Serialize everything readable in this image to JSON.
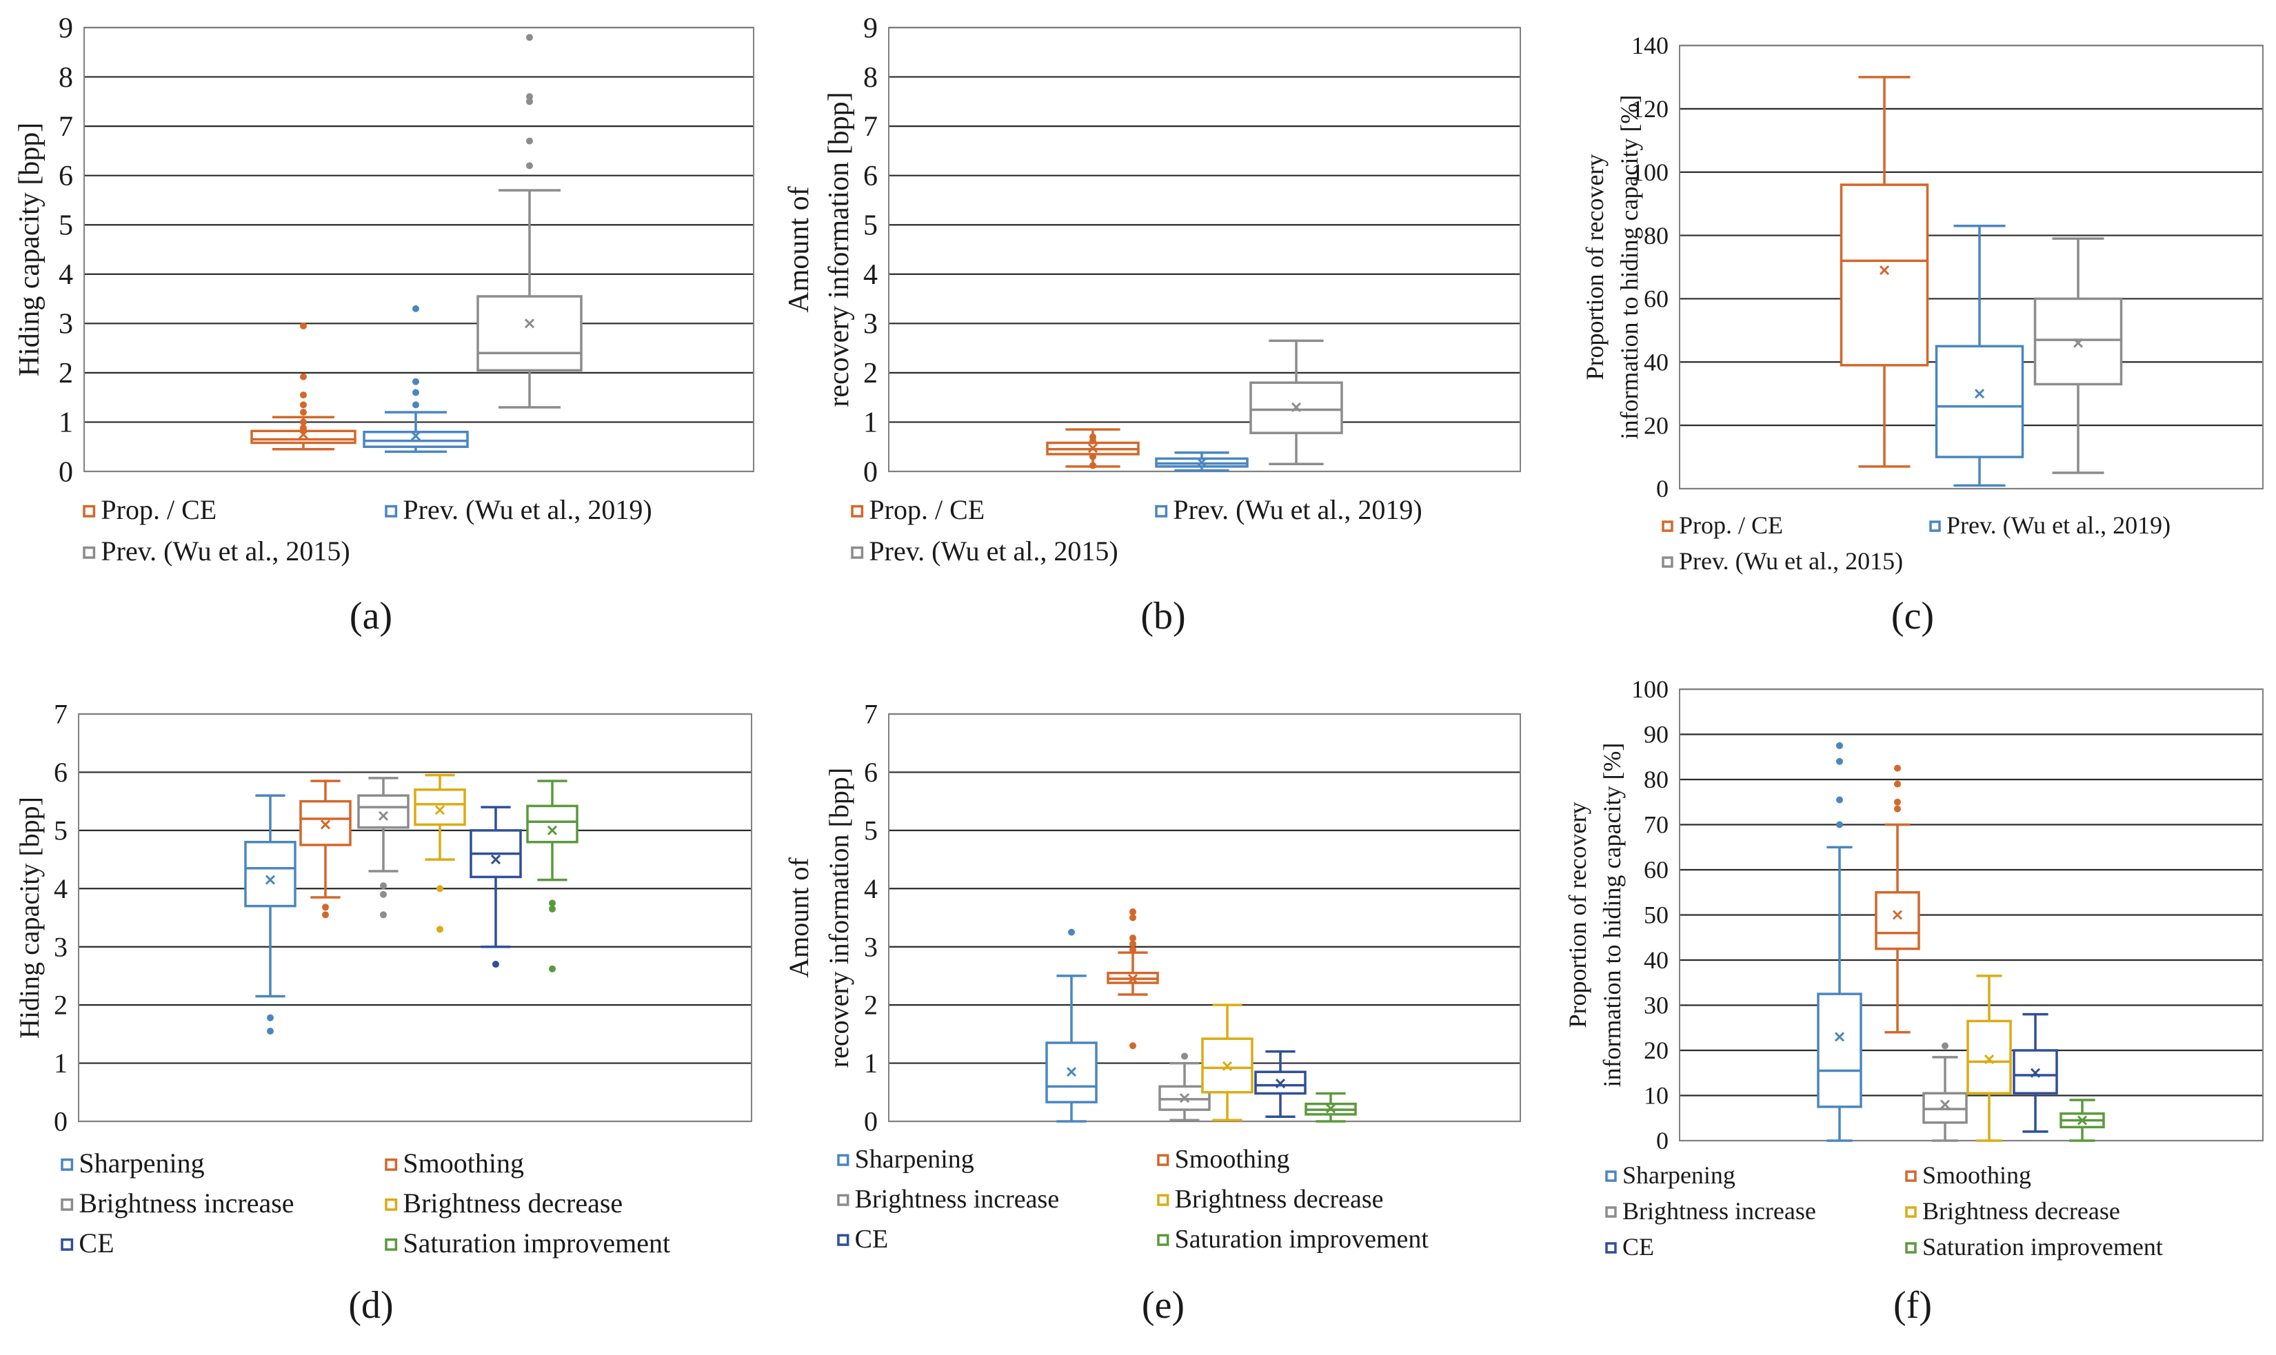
{
  "colors": {
    "sharpening": "#4a86c0",
    "smoothing": "#d4672a",
    "brightness_increase": "#8c8c8c",
    "brightness_decrease": "#dcab13",
    "ce": "#2f4f99",
    "saturation": "#5a9a3c",
    "gridline": "#1a1a1a",
    "frame": "#808080"
  },
  "chart_data": [
    {
      "id": "a",
      "panel_label": "(a)",
      "type": "box",
      "ylabel": [
        "Hiding capacity [bpp]"
      ],
      "ylim": [
        0,
        9
      ],
      "yticks": [
        0,
        1,
        2,
        3,
        4,
        5,
        6,
        7,
        8,
        9
      ],
      "legend": [
        {
          "name": "Prop. / CE",
          "color": "#d4672a"
        },
        {
          "name": "Prev. (Wu et al., 2019)",
          "color": "#4a86c0"
        },
        {
          "name": "Prev. (Wu et al., 2015)",
          "color": "#8c8c8c"
        }
      ],
      "series": [
        {
          "name": "Prop. / CE",
          "color": "#d4672a",
          "min": 0.45,
          "q1": 0.58,
          "median": 0.65,
          "q3": 0.82,
          "max": 1.1,
          "mean": 0.75,
          "outliers": [
            1.2,
            1.35,
            1.55,
            1.92,
            2.95,
            0.82,
            0.88,
            1.0
          ]
        },
        {
          "name": "Prev. (Wu et al., 2019)",
          "color": "#4a86c0",
          "min": 0.4,
          "q1": 0.5,
          "median": 0.62,
          "q3": 0.8,
          "max": 1.2,
          "mean": 0.72,
          "outliers": [
            1.35,
            1.6,
            1.82,
            3.3
          ]
        },
        {
          "name": "Prev. (Wu et al., 2015)",
          "color": "#8c8c8c",
          "min": 1.3,
          "q1": 2.05,
          "median": 2.4,
          "q3": 3.55,
          "max": 5.7,
          "mean": 3.0,
          "outliers": [
            6.2,
            6.7,
            7.5,
            7.6,
            8.8
          ]
        }
      ]
    },
    {
      "id": "b",
      "panel_label": "(b)",
      "type": "box",
      "ylabel": [
        "Amount of",
        "recovery information [bpp]"
      ],
      "ylim": [
        0,
        9
      ],
      "yticks": [
        0,
        1,
        2,
        3,
        4,
        5,
        6,
        7,
        8,
        9
      ],
      "legend": [
        {
          "name": "Prop. / CE",
          "color": "#d4672a"
        },
        {
          "name": "Prev. (Wu et al., 2019)",
          "color": "#4a86c0"
        },
        {
          "name": "Prev. (Wu et al., 2015)",
          "color": "#8c8c8c"
        }
      ],
      "series": [
        {
          "name": "Prop. / CE",
          "color": "#d4672a",
          "min": 0.1,
          "q1": 0.35,
          "median": 0.45,
          "q3": 0.58,
          "max": 0.85,
          "mean": 0.47,
          "outliers": [
            0.12,
            0.3,
            0.62,
            0.7
          ]
        },
        {
          "name": "Prev. (Wu et al., 2019)",
          "color": "#4a86c0",
          "min": 0.02,
          "q1": 0.1,
          "median": 0.16,
          "q3": 0.26,
          "max": 0.38,
          "mean": 0.18,
          "outliers": []
        },
        {
          "name": "Prev. (Wu et al., 2015)",
          "color": "#8c8c8c",
          "min": 0.15,
          "q1": 0.78,
          "median": 1.25,
          "q3": 1.8,
          "max": 2.65,
          "mean": 1.3,
          "outliers": []
        }
      ]
    },
    {
      "id": "c",
      "panel_label": "(c)",
      "type": "box",
      "ylabel": [
        "Proportion of recovery",
        "information to hiding capacity [%]"
      ],
      "ylim": [
        0,
        140
      ],
      "yticks": [
        0,
        20,
        40,
        60,
        80,
        100,
        120,
        140
      ],
      "legend": [
        {
          "name": "Prop. / CE",
          "color": "#d4672a"
        },
        {
          "name": "Prev. (Wu et al., 2019)",
          "color": "#4a86c0"
        },
        {
          "name": "Prev. (Wu et al., 2015)",
          "color": "#8c8c8c"
        }
      ],
      "series": [
        {
          "name": "Prop. / CE",
          "color": "#d4672a",
          "min": 7,
          "q1": 39,
          "median": 72,
          "q3": 96,
          "max": 130,
          "mean": 69,
          "outliers": []
        },
        {
          "name": "Prev. (Wu et al., 2019)",
          "color": "#4a86c0",
          "min": 1,
          "q1": 10,
          "median": 26,
          "q3": 45,
          "max": 83,
          "mean": 30,
          "outliers": []
        },
        {
          "name": "Prev. (Wu et al., 2015)",
          "color": "#8c8c8c",
          "min": 5,
          "q1": 33,
          "median": 47,
          "q3": 60,
          "max": 79,
          "mean": 46,
          "outliers": []
        }
      ]
    },
    {
      "id": "d",
      "panel_label": "(d)",
      "type": "box",
      "ylabel": [
        "Hiding capacity [bpp]"
      ],
      "ylim": [
        0,
        7
      ],
      "yticks": [
        0,
        1,
        2,
        3,
        4,
        5,
        6,
        7
      ],
      "legend": [
        {
          "name": "Sharpening",
          "color": "#4a86c0"
        },
        {
          "name": "Smoothing",
          "color": "#d4672a"
        },
        {
          "name": "Brightness increase",
          "color": "#8c8c8c"
        },
        {
          "name": "Brightness decrease",
          "color": "#dcab13"
        },
        {
          "name": "CE",
          "color": "#2f4f99"
        },
        {
          "name": "Saturation improvement",
          "color": "#5a9a3c"
        }
      ],
      "series": [
        {
          "name": "Sharpening",
          "color": "#4a86c0",
          "min": 2.15,
          "q1": 3.7,
          "median": 4.35,
          "q3": 4.8,
          "max": 5.6,
          "mean": 4.15,
          "outliers": [
            1.55,
            1.78
          ]
        },
        {
          "name": "Smoothing",
          "color": "#d4672a",
          "min": 3.85,
          "q1": 4.75,
          "median": 5.2,
          "q3": 5.5,
          "max": 5.85,
          "mean": 5.1,
          "outliers": [
            3.55,
            3.68
          ]
        },
        {
          "name": "Brightness increase",
          "color": "#8c8c8c",
          "min": 4.3,
          "q1": 5.05,
          "median": 5.4,
          "q3": 5.6,
          "max": 5.9,
          "mean": 5.25,
          "outliers": [
            3.55,
            3.9,
            4.05
          ]
        },
        {
          "name": "Brightness decrease",
          "color": "#dcab13",
          "min": 4.5,
          "q1": 5.1,
          "median": 5.45,
          "q3": 5.7,
          "max": 5.95,
          "mean": 5.35,
          "outliers": [
            3.3,
            4.0
          ]
        },
        {
          "name": "CE",
          "color": "#2f4f99",
          "min": 3.0,
          "q1": 4.2,
          "median": 4.6,
          "q3": 5.0,
          "max": 5.4,
          "mean": 4.5,
          "outliers": [
            2.7
          ]
        },
        {
          "name": "Saturation improvement",
          "color": "#5a9a3c",
          "min": 4.15,
          "q1": 4.8,
          "median": 5.15,
          "q3": 5.42,
          "max": 5.85,
          "mean": 5.0,
          "outliers": [
            2.62,
            3.65,
            3.75
          ]
        }
      ]
    },
    {
      "id": "e",
      "panel_label": "(e)",
      "type": "box",
      "ylabel": [
        "Amount of",
        "recovery information [bpp]"
      ],
      "ylim": [
        0,
        7
      ],
      "yticks": [
        0,
        1,
        2,
        3,
        4,
        5,
        6,
        7
      ],
      "legend": [
        {
          "name": "Sharpening",
          "color": "#4a86c0"
        },
        {
          "name": "Smoothing",
          "color": "#d4672a"
        },
        {
          "name": "Brightness increase",
          "color": "#8c8c8c"
        },
        {
          "name": "Brightness decrease",
          "color": "#dcab13"
        },
        {
          "name": "CE",
          "color": "#2f4f99"
        },
        {
          "name": "Saturation improvement",
          "color": "#5a9a3c"
        }
      ],
      "series": [
        {
          "name": "Sharpening",
          "color": "#4a86c0",
          "min": 0.0,
          "q1": 0.33,
          "median": 0.6,
          "q3": 1.35,
          "max": 2.5,
          "mean": 0.85,
          "outliers": [
            3.25
          ]
        },
        {
          "name": "Smoothing",
          "color": "#d4672a",
          "min": 2.18,
          "q1": 2.38,
          "median": 2.45,
          "q3": 2.55,
          "max": 2.9,
          "mean": 2.45,
          "outliers": [
            1.3,
            2.95,
            3.05,
            3.15,
            3.5,
            3.6
          ]
        },
        {
          "name": "Brightness increase",
          "color": "#8c8c8c",
          "min": 0.02,
          "q1": 0.2,
          "median": 0.38,
          "q3": 0.6,
          "max": 1.0,
          "mean": 0.4,
          "outliers": [
            1.12
          ]
        },
        {
          "name": "Brightness decrease",
          "color": "#dcab13",
          "min": 0.02,
          "q1": 0.5,
          "median": 0.92,
          "q3": 1.42,
          "max": 2.0,
          "mean": 0.95,
          "outliers": []
        },
        {
          "name": "CE",
          "color": "#2f4f99",
          "min": 0.08,
          "q1": 0.48,
          "median": 0.62,
          "q3": 0.85,
          "max": 1.2,
          "mean": 0.65,
          "outliers": []
        },
        {
          "name": "Saturation improvement",
          "color": "#5a9a3c",
          "min": 0.0,
          "q1": 0.12,
          "median": 0.2,
          "q3": 0.3,
          "max": 0.48,
          "mean": 0.22,
          "outliers": []
        }
      ]
    },
    {
      "id": "f",
      "panel_label": "(f)",
      "type": "box",
      "ylabel": [
        "Proportion of recovery",
        "information to hiding capacity [%]"
      ],
      "ylim": [
        0,
        100
      ],
      "yticks": [
        0,
        10,
        20,
        30,
        40,
        50,
        60,
        70,
        80,
        90,
        100
      ],
      "legend": [
        {
          "name": "Sharpening",
          "color": "#4a86c0"
        },
        {
          "name": "Smoothing",
          "color": "#d4672a"
        },
        {
          "name": "Brightness increase",
          "color": "#8c8c8c"
        },
        {
          "name": "Brightness decrease",
          "color": "#dcab13"
        },
        {
          "name": "CE",
          "color": "#2f4f99"
        },
        {
          "name": "Saturation improvement",
          "color": "#5a9a3c"
        }
      ],
      "series": [
        {
          "name": "Sharpening",
          "color": "#4a86c0",
          "min": 0,
          "q1": 7.5,
          "median": 15.5,
          "q3": 32.5,
          "max": 65,
          "mean": 23,
          "outliers": [
            70,
            75.5,
            84,
            87.5
          ]
        },
        {
          "name": "Smoothing",
          "color": "#d4672a",
          "min": 24,
          "q1": 42.5,
          "median": 46,
          "q3": 55,
          "max": 70,
          "mean": 50,
          "outliers": [
            73.5,
            75,
            79,
            82.5
          ]
        },
        {
          "name": "Brightness increase",
          "color": "#8c8c8c",
          "min": 0,
          "q1": 4,
          "median": 7,
          "q3": 10.5,
          "max": 18.5,
          "mean": 8,
          "outliers": [
            21
          ]
        },
        {
          "name": "Brightness decrease",
          "color": "#dcab13",
          "min": 0,
          "q1": 10.5,
          "median": 17.5,
          "q3": 26.5,
          "max": 36.5,
          "mean": 18,
          "outliers": []
        },
        {
          "name": "CE",
          "color": "#2f4f99",
          "min": 2,
          "q1": 10.5,
          "median": 14.5,
          "q3": 20,
          "max": 28,
          "mean": 15,
          "outliers": []
        },
        {
          "name": "Saturation improvement",
          "color": "#5a9a3c",
          "min": 0,
          "q1": 3,
          "median": 4.5,
          "q3": 6,
          "max": 9,
          "mean": 4.5,
          "outliers": []
        }
      ]
    }
  ]
}
